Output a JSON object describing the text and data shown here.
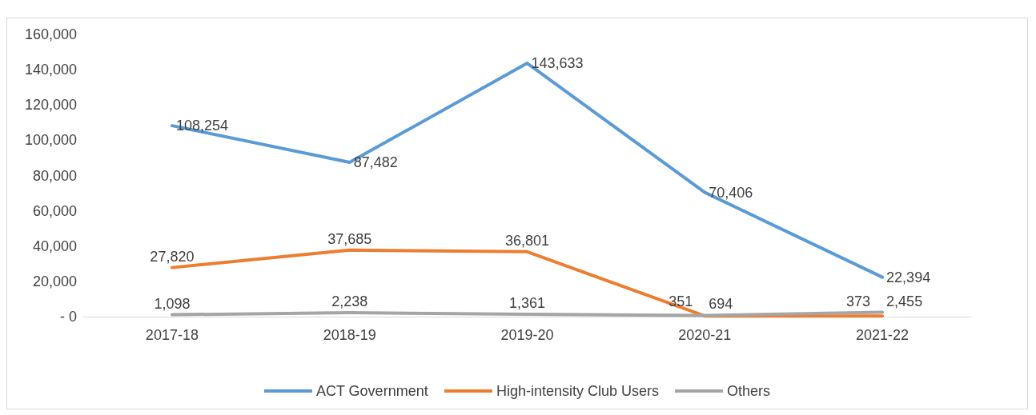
{
  "chart_data": {
    "type": "line",
    "categories": [
      "2017-18",
      "2018-19",
      "2019-20",
      "2020-21",
      "2021-22"
    ],
    "series": [
      {
        "name": "ACT Government",
        "color": "#5b9bd5",
        "values": [
          108254,
          87482,
          143633,
          70406,
          22394
        ],
        "value_labels": [
          "108,254",
          "87,482",
          "143,633",
          "70,406",
          "22,394"
        ]
      },
      {
        "name": "High-intensity Club Users",
        "color": "#ed7d31",
        "values": [
          27820,
          37685,
          36801,
          351,
          373
        ],
        "value_labels": [
          "27,820",
          "37,685",
          "36,801",
          "351",
          "373"
        ]
      },
      {
        "name": "Others",
        "color": "#a5a5a5",
        "values": [
          1098,
          2238,
          1361,
          694,
          2455
        ],
        "value_labels": [
          "1,098",
          "2,238",
          "1,361",
          "694",
          "2,455"
        ]
      }
    ],
    "ylim": [
      0,
      160000
    ],
    "yticks": [
      {
        "value": 0,
        "label": "- 0"
      },
      {
        "value": 20000,
        "label": "20,000"
      },
      {
        "value": 40000,
        "label": "40,000"
      },
      {
        "value": 60000,
        "label": "60,000"
      },
      {
        "value": 80000,
        "label": "80,000"
      },
      {
        "value": 100000,
        "label": "100,000"
      },
      {
        "value": 120000,
        "label": "120,000"
      },
      {
        "value": 140000,
        "label": "140,000"
      },
      {
        "value": 160000,
        "label": "160,000"
      }
    ],
    "grid": false,
    "legend": "bottom",
    "marker": "none",
    "line_style": "solid"
  }
}
